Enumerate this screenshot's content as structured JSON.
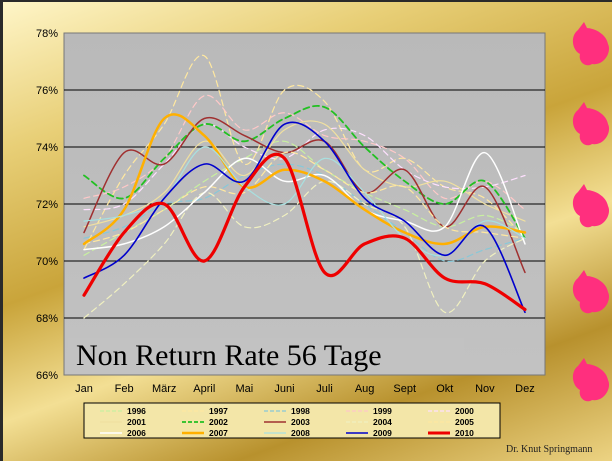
{
  "slide": {
    "overlay_title": "Non Return Rate 56 Tage",
    "credit": "Dr. Knut Springmann"
  },
  "chart_data": {
    "type": "line",
    "title": "",
    "xlabel": "",
    "ylabel": "",
    "categories": [
      "Jan",
      "Feb",
      "März",
      "April",
      "Mai",
      "Juni",
      "Juli",
      "Aug",
      "Sept",
      "Okt",
      "Nov",
      "Dez"
    ],
    "ylim": [
      66,
      78
    ],
    "yticks": [
      66,
      68,
      70,
      72,
      74,
      76,
      78
    ],
    "ytick_labels": [
      "66%",
      "68%",
      "70%",
      "72%",
      "74%",
      "76%",
      "78%"
    ],
    "grid": true,
    "legend_position": "bottom",
    "series": [
      {
        "name": "1996",
        "color": "#c8f0a0",
        "dash": "dashed",
        "width": 1.2,
        "values": [
          70.2,
          71.0,
          71.8,
          72.8,
          73.6,
          74.2,
          73.2,
          72.4,
          71.8,
          71.2,
          71.6,
          71.0
        ]
      },
      {
        "name": "1997",
        "color": "#ffe8a0",
        "dash": "dashed",
        "width": 1.2,
        "values": [
          70.4,
          73.0,
          74.8,
          77.2,
          73.4,
          76.0,
          75.6,
          73.2,
          73.6,
          72.6,
          72.2,
          70.8
        ]
      },
      {
        "name": "1998",
        "color": "#88c8d8",
        "dash": "dashed",
        "width": 1.2,
        "values": [
          70.8,
          71.2,
          72.0,
          72.2,
          73.0,
          73.4,
          73.0,
          72.0,
          71.0,
          70.0,
          70.4,
          70.8
        ]
      },
      {
        "name": "1999",
        "color": "#ffc8c8",
        "dash": "dashed",
        "width": 1.2,
        "values": [
          72.2,
          72.6,
          73.6,
          75.8,
          74.6,
          75.2,
          74.4,
          74.2,
          73.6,
          72.2,
          72.8,
          71.8
        ]
      },
      {
        "name": "2000",
        "color": "#ffe0ff",
        "dash": "dashed",
        "width": 1.2,
        "values": [
          71.8,
          72.0,
          73.4,
          74.8,
          74.0,
          73.6,
          74.6,
          74.4,
          73.2,
          72.6,
          72.6,
          73.0
        ]
      },
      {
        "name": "2001",
        "color": "#f0e0a0",
        "dash": "solid",
        "width": 1.2,
        "values": [
          71.2,
          71.6,
          72.4,
          74.2,
          73.0,
          74.6,
          74.8,
          73.2,
          72.6,
          72.8,
          72.0,
          71.4
        ]
      },
      {
        "name": "2002",
        "color": "#22c022",
        "dash": "dashed",
        "width": 1.8,
        "values": [
          73.0,
          72.2,
          73.6,
          74.8,
          74.2,
          75.0,
          75.4,
          74.0,
          72.8,
          72.0,
          72.8,
          70.8
        ]
      },
      {
        "name": "2003",
        "color": "#a03030",
        "dash": "solid",
        "width": 1.5,
        "values": [
          71.0,
          73.8,
          73.4,
          75.0,
          74.4,
          73.8,
          74.2,
          72.4,
          73.2,
          71.2,
          72.6,
          69.6
        ]
      },
      {
        "name": "2004",
        "color": "#f0f0c0",
        "dash": "dashed",
        "width": 1.2,
        "values": [
          68.0,
          69.2,
          70.6,
          72.4,
          71.2,
          71.6,
          72.8,
          72.0,
          71.2,
          68.2,
          70.0,
          70.8
        ]
      },
      {
        "name": "2005",
        "color": "#ffe8a0",
        "dash": "dashed",
        "width": 1.2,
        "values": [
          70.6,
          71.0,
          71.8,
          72.6,
          72.4,
          73.8,
          73.2,
          72.4,
          72.6,
          71.2,
          71.0,
          70.8
        ]
      },
      {
        "name": "2006",
        "color": "#ffffff",
        "dash": "solid",
        "width": 1.5,
        "values": [
          70.4,
          70.6,
          71.2,
          72.4,
          73.6,
          72.8,
          73.0,
          71.8,
          71.4,
          71.2,
          73.8,
          70.6
        ]
      },
      {
        "name": "2007",
        "color": "#ffb000",
        "dash": "solid",
        "width": 2.5,
        "values": [
          70.6,
          71.8,
          75.0,
          74.4,
          72.6,
          73.2,
          72.8,
          71.8,
          71.0,
          70.6,
          71.2,
          71.0
        ]
      },
      {
        "name": "2008",
        "color": "#a8e0e0",
        "dash": "solid",
        "width": 1.2,
        "values": [
          71.4,
          71.6,
          72.2,
          74.0,
          72.6,
          72.0,
          73.6,
          72.4,
          70.8,
          70.2,
          71.4,
          70.8
        ]
      },
      {
        "name": "2009",
        "color": "#0000cc",
        "dash": "solid",
        "width": 1.6,
        "values": [
          69.4,
          70.2,
          72.2,
          73.4,
          72.8,
          74.8,
          74.2,
          72.2,
          71.4,
          70.2,
          71.2,
          68.2
        ]
      },
      {
        "name": "2010",
        "color": "#ee0000",
        "dash": "solid",
        "width": 3.2,
        "values": [
          68.8,
          71.0,
          72.0,
          70.0,
          72.6,
          73.6,
          69.6,
          70.6,
          70.8,
          69.4,
          69.2,
          68.3
        ]
      }
    ]
  },
  "decor": {
    "icon": "pink-flower-icon"
  }
}
